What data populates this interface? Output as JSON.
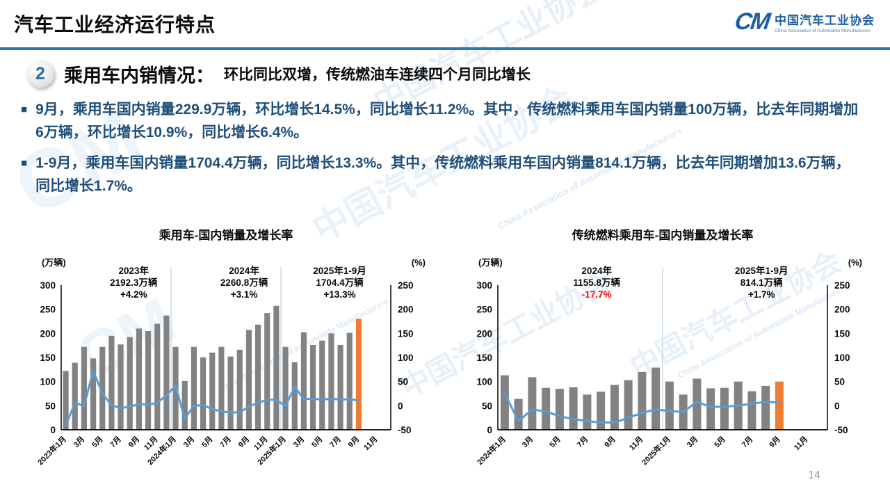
{
  "header": {
    "title": "汽车工业经济运行特点",
    "logo": {
      "mark": "CM",
      "org_cn": "中国汽车工业协会",
      "org_en": "China Association of Automobile Manufacturers"
    }
  },
  "section": {
    "number": "2",
    "title": "乘用车内销情况：",
    "subtitle": "环比同比双增，传统燃油车连续四个月同比增长"
  },
  "bullets": [
    "9月，乘用车国内销量229.9万辆，环比增长14.5%，同比增长11.2%。其中，传统燃料乘用车国内销量100万辆，比去年同期增加6万辆，环比增长10.9%，同比增长6.4%。",
    "1-9月，乘用车国内销量1704.4万辆，同比增长13.3%。其中，传统燃料乘用车国内销量814.1万辆，比去年同期增加13.6万辆，同比增长1.7%。"
  ],
  "watermark": {
    "cn": "中国汽车工业协会",
    "en": "China Association of Automobile Manufacturers",
    "mark": "CM"
  },
  "colors": {
    "accent_blue": "#2E74B5",
    "body_text": "#1F4E79",
    "bar": "#828282",
    "bar_highlight": "#ED7D31",
    "line": "#5B9BD5",
    "negative_red": "#FF0000",
    "divider": "#BDD7EE",
    "axis": "#000000"
  },
  "page": {
    "number": "14"
  },
  "chart_data": [
    {
      "type": "bar",
      "title": "乘用车-国内销量及增长率",
      "left_axis": {
        "label": "(万辆)",
        "min": 0,
        "max": 300,
        "step": 50
      },
      "right_axis": {
        "label": "(%)",
        "min": -50,
        "max": 250,
        "step": 50
      },
      "x_tick_labels": [
        "2023年1月",
        "3月",
        "5月",
        "7月",
        "9月",
        "11月",
        "2024年1月",
        "3月",
        "5月",
        "7月",
        "9月",
        "11月",
        "2025年1月",
        "3月",
        "5月",
        "7月",
        "9月",
        "11月"
      ],
      "bars": {
        "name": "国内销量(万辆)",
        "values": [
          122,
          139,
          172,
          148,
          172,
          195,
          177,
          192,
          210,
          205,
          220,
          237,
          172,
          101,
          172,
          150,
          160,
          172,
          152,
          166,
          207,
          218,
          242,
          257,
          172,
          140,
          202,
          176,
          185,
          200,
          176,
          201,
          229.9,
          null,
          null,
          null
        ]
      },
      "line": {
        "name": "同比增长率(%)",
        "values": [
          -42,
          6,
          -1,
          73,
          25,
          1,
          -5,
          -2,
          3,
          2,
          6,
          22,
          41,
          -27,
          0,
          1,
          -7,
          -12,
          -14,
          -14,
          -2,
          6,
          12,
          12,
          -1,
          39,
          14,
          14,
          13,
          14,
          13,
          13,
          11.2,
          null,
          null,
          null
        ]
      },
      "highlight_index": 32,
      "dividers": [
        12,
        24
      ],
      "annotations": [
        {
          "lines": [
            "2023年",
            "2192.3万辆",
            "+4.2%"
          ],
          "x_frac": 0.22,
          "value_color": "#000000"
        },
        {
          "lines": [
            "2024年",
            "2260.8万辆",
            "+3.1%"
          ],
          "x_frac": 0.555,
          "value_color": "#000000"
        },
        {
          "lines": [
            "2025年1-9月",
            "1704.4万辆",
            "+13.3%"
          ],
          "x_frac": 0.845,
          "value_color": "#000000"
        }
      ]
    },
    {
      "type": "bar",
      "title": "传统燃料乘用车-国内销量及增长率",
      "left_axis": {
        "label": "(万辆)",
        "min": 0,
        "max": 300,
        "step": 50
      },
      "right_axis": {
        "label": "(%)",
        "min": -50,
        "max": 250,
        "step": 50
      },
      "x_tick_labels": [
        "2024年1月",
        "3月",
        "5月",
        "7月",
        "9月",
        "11月",
        "2025年1月",
        "3月",
        "5月",
        "7月",
        "9月",
        "11月"
      ],
      "bars": {
        "name": "国内销量(万辆)",
        "values": [
          113,
          64,
          109,
          87,
          85,
          88,
          73,
          79,
          93,
          103,
          120,
          129,
          100,
          73,
          106,
          86,
          87,
          100,
          80,
          91,
          100,
          null,
          null,
          null
        ]
      },
      "line": {
        "name": "同比增长率(%)",
        "values": [
          25,
          -32,
          -8,
          -12,
          -22,
          -28,
          -32,
          -35,
          -35,
          -25,
          -15,
          -8,
          -11,
          -13,
          8,
          -3,
          -2,
          0,
          4,
          8,
          6.4,
          null,
          null,
          null
        ]
      },
      "highlight_index": 20,
      "dividers": [
        12
      ],
      "annotations": [
        {
          "lines": [
            "2024年",
            "1155.8万辆",
            "-17.7%"
          ],
          "x_frac": 0.3,
          "value_color": "#FF0000"
        },
        {
          "lines": [
            "2025年1-9月",
            "814.1万辆",
            "+1.7%"
          ],
          "x_frac": 0.8,
          "value_color": "#000000"
        }
      ]
    }
  ]
}
